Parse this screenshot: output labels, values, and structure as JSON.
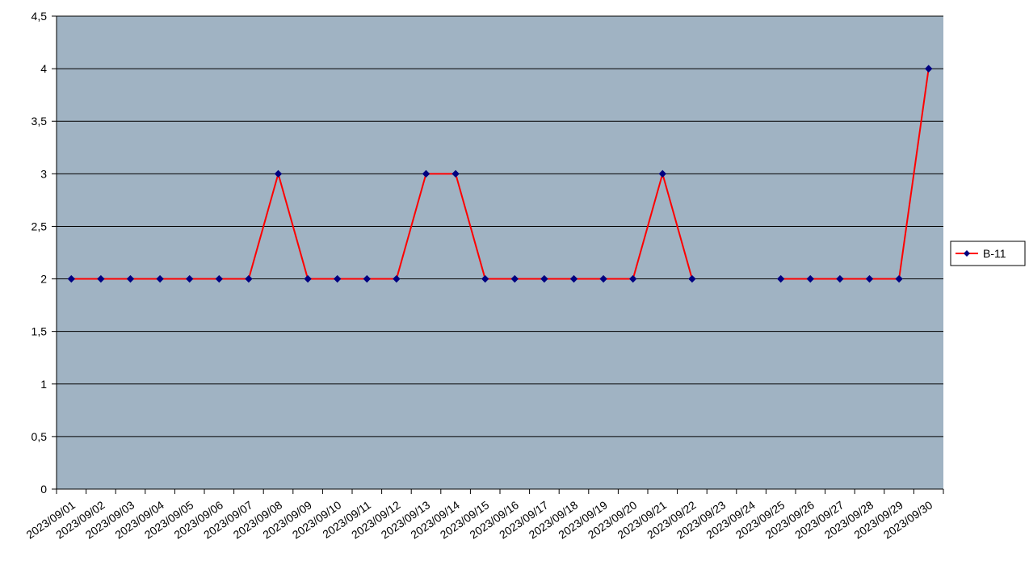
{
  "chart_data": {
    "type": "line",
    "title": "",
    "xlabel": "",
    "ylabel": "",
    "categories": [
      "2023/09/01",
      "2023/09/02",
      "2023/09/03",
      "2023/09/04",
      "2023/09/05",
      "2023/09/06",
      "2023/09/07",
      "2023/09/08",
      "2023/09/09",
      "2023/09/10",
      "2023/09/11",
      "2023/09/12",
      "2023/09/13",
      "2023/09/14",
      "2023/09/15",
      "2023/09/16",
      "2023/09/17",
      "2023/09/18",
      "2023/09/19",
      "2023/09/20",
      "2023/09/21",
      "2023/09/22",
      "2023/09/23",
      "2023/09/24",
      "2023/09/25",
      "2023/09/26",
      "2023/09/27",
      "2023/09/28",
      "2023/09/29",
      "2023/09/30"
    ],
    "series": [
      {
        "name": "B-11",
        "color": "#ff0000",
        "marker_color": "#000080",
        "values": [
          2,
          2,
          2,
          2,
          2,
          2,
          2,
          3,
          2,
          2,
          2,
          2,
          3,
          3,
          2,
          2,
          2,
          2,
          2,
          2,
          3,
          2,
          null,
          null,
          2,
          2,
          2,
          2,
          2,
          4
        ]
      }
    ],
    "ylim": [
      0,
      4.5
    ],
    "y_ticks": [
      "0",
      "0,5",
      "1",
      "1,5",
      "2",
      "2,5",
      "3",
      "3,5",
      "4",
      "4,5"
    ],
    "grid": true,
    "legend_position": "right",
    "plot_background": "#a0b3c3"
  }
}
